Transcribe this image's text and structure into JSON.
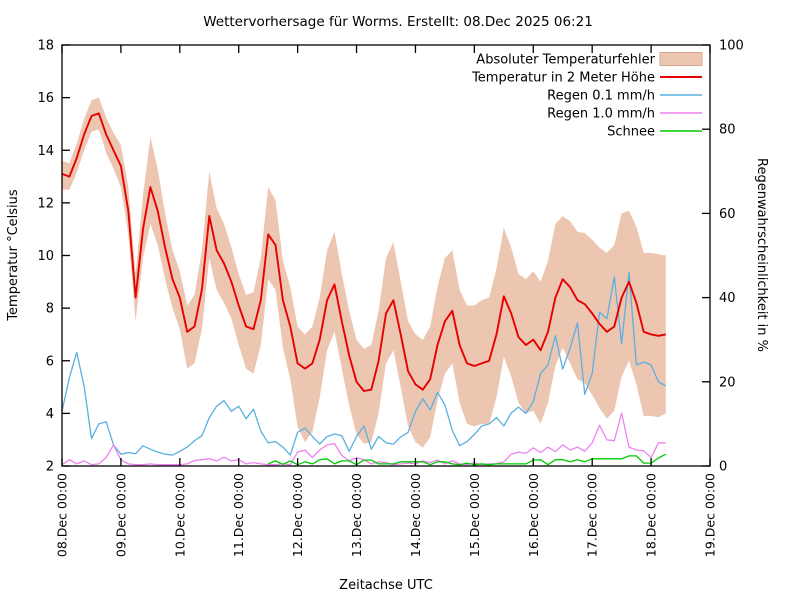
{
  "title": "Wettervorhersage für Worms. Erstellt: 08.Dec 2025 06:21",
  "axes": {
    "x_label": "Zeitachse UTC",
    "y_left_label": "Temperatur °Celsius",
    "y_right_label": "Regenwahrscheinlichkeit in %",
    "x_ticks": [
      "08.Dec 00:00",
      "09.Dec 00:00",
      "10.Dec 00:00",
      "11.Dec 00:00",
      "12.Dec 00:00",
      "13.Dec 00:00",
      "14.Dec 00:00",
      "15.Dec 00:00",
      "16.Dec 00:00",
      "17.Dec 00:00",
      "18.Dec 00:00",
      "19.Dec 00:00"
    ],
    "y_left_ticks": [
      2,
      4,
      6,
      8,
      10,
      12,
      14,
      16,
      18
    ],
    "y_right_ticks": [
      0,
      20,
      40,
      60,
      80,
      100
    ],
    "y_left_range": [
      2,
      18
    ],
    "y_right_range": [
      0,
      100
    ],
    "x_range_days": [
      0,
      11
    ],
    "grid": false
  },
  "colors": {
    "band_fill": "#edc6b1",
    "band_border": "#d6a78e",
    "temperature": "#e60000",
    "rain01": "#5bb0e1",
    "rain10": "#ee82ee",
    "snow": "#00cc00",
    "frame": "#000000"
  },
  "legend": [
    {
      "label": "Absoluter Temperaturfehler",
      "type": "box",
      "color": "#edc6b1"
    },
    {
      "label": "Temperatur in 2 Meter Höhe",
      "type": "line",
      "color": "#e60000"
    },
    {
      "label": "Regen 0.1 mm/h",
      "type": "line",
      "color": "#5bb0e1"
    },
    {
      "label": "Regen 1.0 mm/h",
      "type": "line",
      "color": "#ee82ee"
    },
    {
      "label": "Schnee",
      "type": "line",
      "color": "#00cc00"
    }
  ],
  "chart_data": {
    "type": "line",
    "title": "Wettervorhersage für Worms. Erstellt: 08.Dec 2025 06:21",
    "xlabel": "Zeitachse UTC",
    "ylabel_left": "Temperatur °Celsius",
    "ylabel_right": "Regenwahrscheinlichkeit in %",
    "x_unit": "days since 08.Dec 2025 00:00 UTC",
    "x_axis_days_labels": [
      "08.Dec",
      "09.Dec",
      "10.Dec",
      "11.Dec",
      "12.Dec",
      "13.Dec",
      "14.Dec",
      "15.Dec",
      "16.Dec",
      "17.Dec",
      "18.Dec",
      "19.Dec"
    ],
    "ylim_left": [
      2,
      18
    ],
    "ylim_right": [
      0,
      100
    ],
    "legend_position": "top-right-inside",
    "t": [
      0,
      0.125,
      0.25,
      0.375,
      0.5,
      0.625,
      0.75,
      0.875,
      1,
      1.125,
      1.25,
      1.375,
      1.5,
      1.625,
      1.75,
      1.875,
      2,
      2.125,
      2.25,
      2.375,
      2.5,
      2.625,
      2.75,
      2.875,
      3,
      3.125,
      3.25,
      3.375,
      3.5,
      3.625,
      3.75,
      3.875,
      4,
      4.125,
      4.25,
      4.375,
      4.5,
      4.625,
      4.75,
      4.875,
      5,
      5.125,
      5.25,
      5.375,
      5.5,
      5.625,
      5.75,
      5.875,
      6,
      6.125,
      6.25,
      6.375,
      6.5,
      6.625,
      6.75,
      6.875,
      7,
      7.125,
      7.25,
      7.375,
      7.5,
      7.625,
      7.75,
      7.875,
      8,
      8.125,
      8.25,
      8.375,
      8.5,
      8.625,
      8.75,
      8.875,
      9,
      9.125,
      9.25,
      9.375,
      9.5,
      9.625,
      9.75,
      9.875,
      10,
      10.125,
      10.25
    ],
    "series": [
      {
        "name": "Absoluter Temperaturfehler",
        "axis": "left",
        "kind": "band",
        "fill": "#edc6b1",
        "upper": [
          13.6,
          13.5,
          14.25,
          15.2,
          15.9,
          16.0,
          15.25,
          14.65,
          14.2,
          12.6,
          9.3,
          12.3,
          14.5,
          13.3,
          11.6,
          10.2,
          9.4,
          8.1,
          8.5,
          10.2,
          13.2,
          11.8,
          11.2,
          10.3,
          9.3,
          8.5,
          8.6,
          9.9,
          12.6,
          12.1,
          9.8,
          8.8,
          7.3,
          7.0,
          7.3,
          8.4,
          10.2,
          10.9,
          9.3,
          7.9,
          6.8,
          6.45,
          6.6,
          7.9,
          9.9,
          10.5,
          9.0,
          7.5,
          7.0,
          6.8,
          7.3,
          8.8,
          9.9,
          10.2,
          8.7,
          8.1,
          8.1,
          8.3,
          8.4,
          9.5,
          11.05,
          10.3,
          9.3,
          9.1,
          9.4,
          9.0,
          9.8,
          11.2,
          11.5,
          11.3,
          10.9,
          10.85,
          10.6,
          10.3,
          10.1,
          10.4,
          11.6,
          11.7,
          11.1,
          10.1,
          10.1,
          10.05,
          10.0
        ],
        "lower": [
          12.5,
          12.5,
          13.15,
          14.0,
          14.7,
          14.8,
          13.9,
          13.3,
          12.6,
          10.8,
          7.5,
          9.9,
          11.2,
          10.4,
          9.1,
          8.0,
          7.2,
          5.7,
          5.9,
          7.2,
          9.9,
          8.7,
          8.2,
          7.6,
          6.6,
          5.7,
          5.5,
          6.6,
          9.1,
          8.7,
          6.5,
          5.3,
          3.5,
          2.9,
          3.3,
          4.6,
          6.4,
          7.1,
          5.7,
          4.3,
          3.2,
          2.85,
          2.9,
          4.0,
          5.9,
          6.4,
          5.0,
          3.5,
          2.9,
          2.7,
          3.1,
          4.5,
          5.5,
          5.9,
          4.4,
          3.6,
          3.5,
          3.6,
          3.6,
          4.6,
          6.15,
          5.4,
          4.4,
          4.0,
          4.1,
          3.6,
          4.4,
          5.8,
          6.5,
          5.9,
          5.3,
          5.15,
          4.7,
          4.2,
          3.8,
          4.1,
          5.4,
          6.0,
          5.1,
          3.9,
          3.9,
          3.85,
          4.0
        ]
      },
      {
        "name": "Temperatur in 2 Meter Höhe",
        "axis": "left",
        "kind": "line",
        "color": "#e60000",
        "unit": "°C",
        "values": [
          13.1,
          13.0,
          13.7,
          14.6,
          15.3,
          15.4,
          14.6,
          14.0,
          13.4,
          11.7,
          8.4,
          11.0,
          12.6,
          11.7,
          10.3,
          9.1,
          8.4,
          7.1,
          7.3,
          8.7,
          11.5,
          10.2,
          9.7,
          9.0,
          8.1,
          7.3,
          7.2,
          8.3,
          10.8,
          10.4,
          8.3,
          7.3,
          5.9,
          5.7,
          5.9,
          6.8,
          8.3,
          8.9,
          7.5,
          6.2,
          5.2,
          4.85,
          4.9,
          6.0,
          7.8,
          8.3,
          7.0,
          5.6,
          5.1,
          4.9,
          5.3,
          6.6,
          7.5,
          7.9,
          6.6,
          5.9,
          5.8,
          5.9,
          6.0,
          7.0,
          8.45,
          7.8,
          6.9,
          6.6,
          6.8,
          6.4,
          7.1,
          8.4,
          9.1,
          8.8,
          8.3,
          8.15,
          7.8,
          7.4,
          7.1,
          7.3,
          8.4,
          9.0,
          8.2,
          7.1,
          7.0,
          6.95,
          7.0
        ]
      },
      {
        "name": "Regen 0.1 mm/h",
        "axis": "right",
        "kind": "line",
        "color": "#5bb0e1",
        "unit": "%",
        "values": [
          13,
          21,
          27,
          19,
          6.5,
          10,
          10.5,
          5,
          2.8,
          3.2,
          2.9,
          4.8,
          4.0,
          3.3,
          2.8,
          2.6,
          3.5,
          4.5,
          6,
          7.2,
          11.5,
          14.2,
          15.5,
          13,
          14.2,
          11.2,
          13.5,
          8.3,
          5.5,
          5.8,
          4.5,
          2.6,
          8,
          9,
          7,
          5.2,
          7,
          7.6,
          7.2,
          3.5,
          7,
          9.5,
          4,
          7,
          5.5,
          5.2,
          6.9,
          8,
          13,
          16,
          13.3,
          17.5,
          14.5,
          8.5,
          4.8,
          5.8,
          7.5,
          9.5,
          10,
          11.5,
          9.5,
          12.6,
          14,
          12.5,
          15.3,
          22,
          24,
          31,
          23,
          28,
          34,
          17,
          22,
          36.5,
          35,
          45,
          29,
          46,
          24,
          24.7,
          24,
          20,
          19
        ]
      },
      {
        "name": "Regen 1.0 mm/h",
        "axis": "right",
        "kind": "line",
        "color": "#ee82ee",
        "unit": "%",
        "values": [
          0.3,
          1.5,
          0.5,
          1.2,
          0.3,
          0.5,
          2.0,
          5.0,
          1.5,
          0.5,
          0.3,
          0.3,
          0.5,
          0.3,
          0.3,
          0.3,
          0.3,
          0.5,
          1.3,
          1.5,
          1.7,
          1.2,
          2.1,
          1.2,
          1.5,
          0.5,
          0.8,
          0.5,
          0.3,
          0.3,
          0.5,
          0.3,
          3.3,
          3.8,
          2.0,
          3.8,
          5.0,
          5.3,
          2.5,
          1.2,
          2.0,
          1.5,
          0.5,
          1.0,
          0.8,
          0.3,
          0.5,
          0.7,
          0.5,
          1.2,
          0.8,
          1.4,
          0.5,
          1.2,
          0.5,
          0.3,
          0.8,
          0.3,
          0.5,
          0.5,
          1.0,
          2.8,
          3.3,
          3.0,
          4.3,
          3.2,
          4.5,
          3.4,
          5.0,
          3.8,
          4.5,
          3.5,
          5.5,
          9.7,
          6.2,
          6.0,
          12.6,
          4.5,
          3.8,
          3.6,
          2.0,
          5.5,
          5.5
        ]
      },
      {
        "name": "Schnee",
        "axis": "right",
        "kind": "line",
        "color": "#00cc00",
        "unit": "%",
        "values": [
          null,
          null,
          null,
          null,
          null,
          null,
          null,
          null,
          null,
          null,
          null,
          null,
          null,
          null,
          null,
          null,
          null,
          null,
          null,
          null,
          null,
          null,
          null,
          null,
          null,
          null,
          null,
          null,
          0.5,
          1.2,
          0.4,
          1.2,
          0.3,
          1.0,
          0.5,
          1.5,
          1.7,
          0.5,
          1.2,
          1.2,
          0.3,
          1.4,
          1.4,
          0.5,
          0.5,
          0.5,
          1.0,
          1.0,
          1.0,
          1.0,
          0.3,
          1.0,
          1.0,
          0.5,
          0.3,
          0.7,
          0.3,
          0.5,
          0.3,
          0.5,
          0.5,
          0.5,
          0.5,
          0.5,
          1.4,
          1.5,
          0.3,
          1.5,
          1.5,
          1.0,
          1.5,
          1.0,
          1.7,
          1.7,
          1.7,
          1.7,
          1.7,
          2.4,
          2.4,
          0.7,
          0.7,
          1.9,
          2.8
        ]
      }
    ]
  }
}
